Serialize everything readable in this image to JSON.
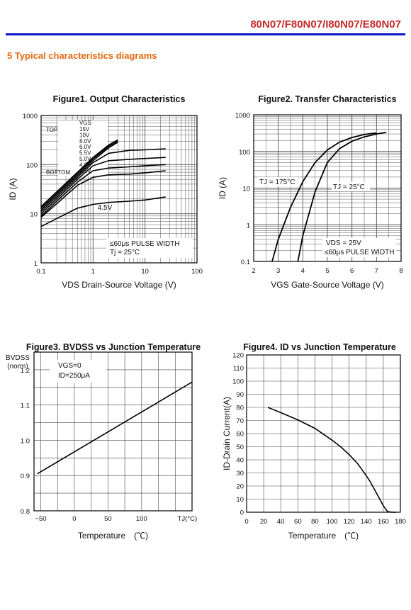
{
  "header": {
    "doc_title": "80N07/F80N07/I80N07/E80N07",
    "section_title": "5   Typical characteristics diagrams"
  },
  "colors": {
    "title": "#c62a2a",
    "rule": "#0a14c8",
    "section": "#e06a10"
  },
  "chart_data": [
    {
      "type": "line",
      "title": "Figure1. Output Characteristics",
      "xlabel": "V_DS Drain-Source Voltage (V)",
      "ylabel": "I_D (A)",
      "xscale": "log",
      "yscale": "log",
      "xlim": [
        0.1,
        100
      ],
      "ylim": [
        1,
        1000
      ],
      "xticks": [
        "0.1",
        "1",
        "10",
        "100"
      ],
      "yticks": [
        "1",
        "10",
        "100",
        "1000"
      ],
      "legend_header": "VGS",
      "legend_top": "TOP",
      "legend_bottom": "BOTTOM",
      "vgs_labels": [
        "15V",
        "10V",
        "8.0V",
        "6.0V",
        "5.5V",
        "5.0V",
        "4.8V",
        "4.5V"
      ],
      "curve_label": "4.5V",
      "note_lines": [
        "≤60μs PULSE WIDTH",
        "Tj = 25°C"
      ],
      "series": [
        {
          "name": "15V",
          "x": [
            0.1,
            0.2,
            0.5,
            1,
            2,
            3
          ],
          "y": [
            14,
            28,
            70,
            140,
            250,
            320
          ]
        },
        {
          "name": "10V",
          "x": [
            0.1,
            0.2,
            0.5,
            1,
            2,
            3
          ],
          "y": [
            13,
            26,
            65,
            130,
            235,
            300
          ]
        },
        {
          "name": "8.0V",
          "x": [
            0.1,
            0.2,
            0.5,
            1,
            2,
            3
          ],
          "y": [
            12,
            24,
            60,
            120,
            220,
            285
          ]
        },
        {
          "name": "6.0V",
          "x": [
            0.1,
            0.2,
            0.5,
            1,
            2,
            5,
            10,
            25
          ],
          "y": [
            11,
            22,
            55,
            110,
            170,
            195,
            200,
            210
          ]
        },
        {
          "name": "5.5V",
          "x": [
            0.1,
            0.2,
            0.5,
            1,
            2,
            5,
            10,
            25
          ],
          "y": [
            10,
            20,
            50,
            95,
            120,
            128,
            133,
            140
          ]
        },
        {
          "name": "5.0V",
          "x": [
            0.1,
            0.2,
            0.5,
            1,
            2,
            5,
            10,
            25
          ],
          "y": [
            9,
            18,
            44,
            75,
            85,
            90,
            95,
            100
          ]
        },
        {
          "name": "4.8V",
          "x": [
            0.1,
            0.2,
            0.5,
            1,
            2,
            5,
            10,
            25
          ],
          "y": [
            8.5,
            16,
            38,
            55,
            62,
            64,
            68,
            75
          ]
        },
        {
          "name": "4.5V",
          "x": [
            0.1,
            0.2,
            0.5,
            1,
            2,
            5,
            10,
            25
          ],
          "y": [
            5.5,
            8,
            13,
            15.5,
            17,
            18,
            19,
            22
          ]
        }
      ]
    },
    {
      "type": "line",
      "title": "Figure2. Transfer Characteristics",
      "xlabel": "V_GS Gate-Source Voltage (V)",
      "ylabel": "I_D (A)",
      "yscale": "log",
      "xlim": [
        2,
        8
      ],
      "ylim": [
        0.1,
        1000
      ],
      "xticks": [
        "2",
        "3",
        "4",
        "5",
        "6",
        "7",
        "8"
      ],
      "yticks": [
        "0.1",
        "1",
        "10",
        "100",
        "1000"
      ],
      "annotations": [
        "TJ = 175°C",
        "TJ = 25°C",
        "VDS = 25V",
        "≤60μs PULSE WIDTH"
      ],
      "series": [
        {
          "name": "TJ = 175°C",
          "x": [
            2.75,
            3,
            3.5,
            4,
            4.5,
            5,
            5.5,
            6,
            6.5,
            7
          ],
          "y": [
            0.1,
            0.4,
            3,
            15,
            50,
            110,
            180,
            240,
            290,
            320
          ]
        },
        {
          "name": "TJ = 25°C",
          "x": [
            3.8,
            4,
            4.5,
            5,
            5.5,
            6,
            6.5,
            7,
            7.4
          ],
          "y": [
            0.1,
            0.5,
            8,
            50,
            120,
            190,
            250,
            300,
            330
          ]
        }
      ]
    },
    {
      "type": "line",
      "title": "Figure3. BVDSS vs Junction Temperature",
      "xlabel": "Temperature　(℃)",
      "ylabel": "BV_DSS (norm)",
      "xlim": [
        -60,
        175
      ],
      "ylim": [
        0.8,
        1.25
      ],
      "xticks": [
        "−50",
        "0",
        "50",
        "100",
        "TJ(°C)"
      ],
      "yticks": [
        "0.8",
        "0.9",
        "1.0",
        "1.1",
        "1.2"
      ],
      "note_lines": [
        "VGS=0",
        "ID=250μA"
      ],
      "series": [
        {
          "name": "BVDSS",
          "x": [
            -55,
            175
          ],
          "y": [
            0.905,
            1.165
          ]
        }
      ]
    },
    {
      "type": "line",
      "title": "Figure4. ID vs Junction Temperature",
      "xlabel": "Temperature　(℃)",
      "ylabel": "ID-Drain Current(A)",
      "xlim": [
        0,
        180
      ],
      "ylim": [
        0,
        120
      ],
      "xticks": [
        "0",
        "20",
        "40",
        "60",
        "80",
        "100",
        "120",
        "140",
        "160",
        "180"
      ],
      "yticks": [
        "0",
        "10",
        "20",
        "30",
        "40",
        "50",
        "60",
        "70",
        "80",
        "90",
        "100",
        "110",
        "120"
      ],
      "series": [
        {
          "name": "ID",
          "x": [
            25,
            40,
            60,
            80,
            100,
            110,
            120,
            130,
            140,
            145,
            150,
            155,
            160,
            165,
            170,
            175
          ],
          "y": [
            80,
            76,
            70.5,
            64,
            55,
            50,
            44,
            37,
            28,
            23,
            17,
            11,
            5,
            0.5,
            0,
            0
          ]
        }
      ]
    }
  ]
}
